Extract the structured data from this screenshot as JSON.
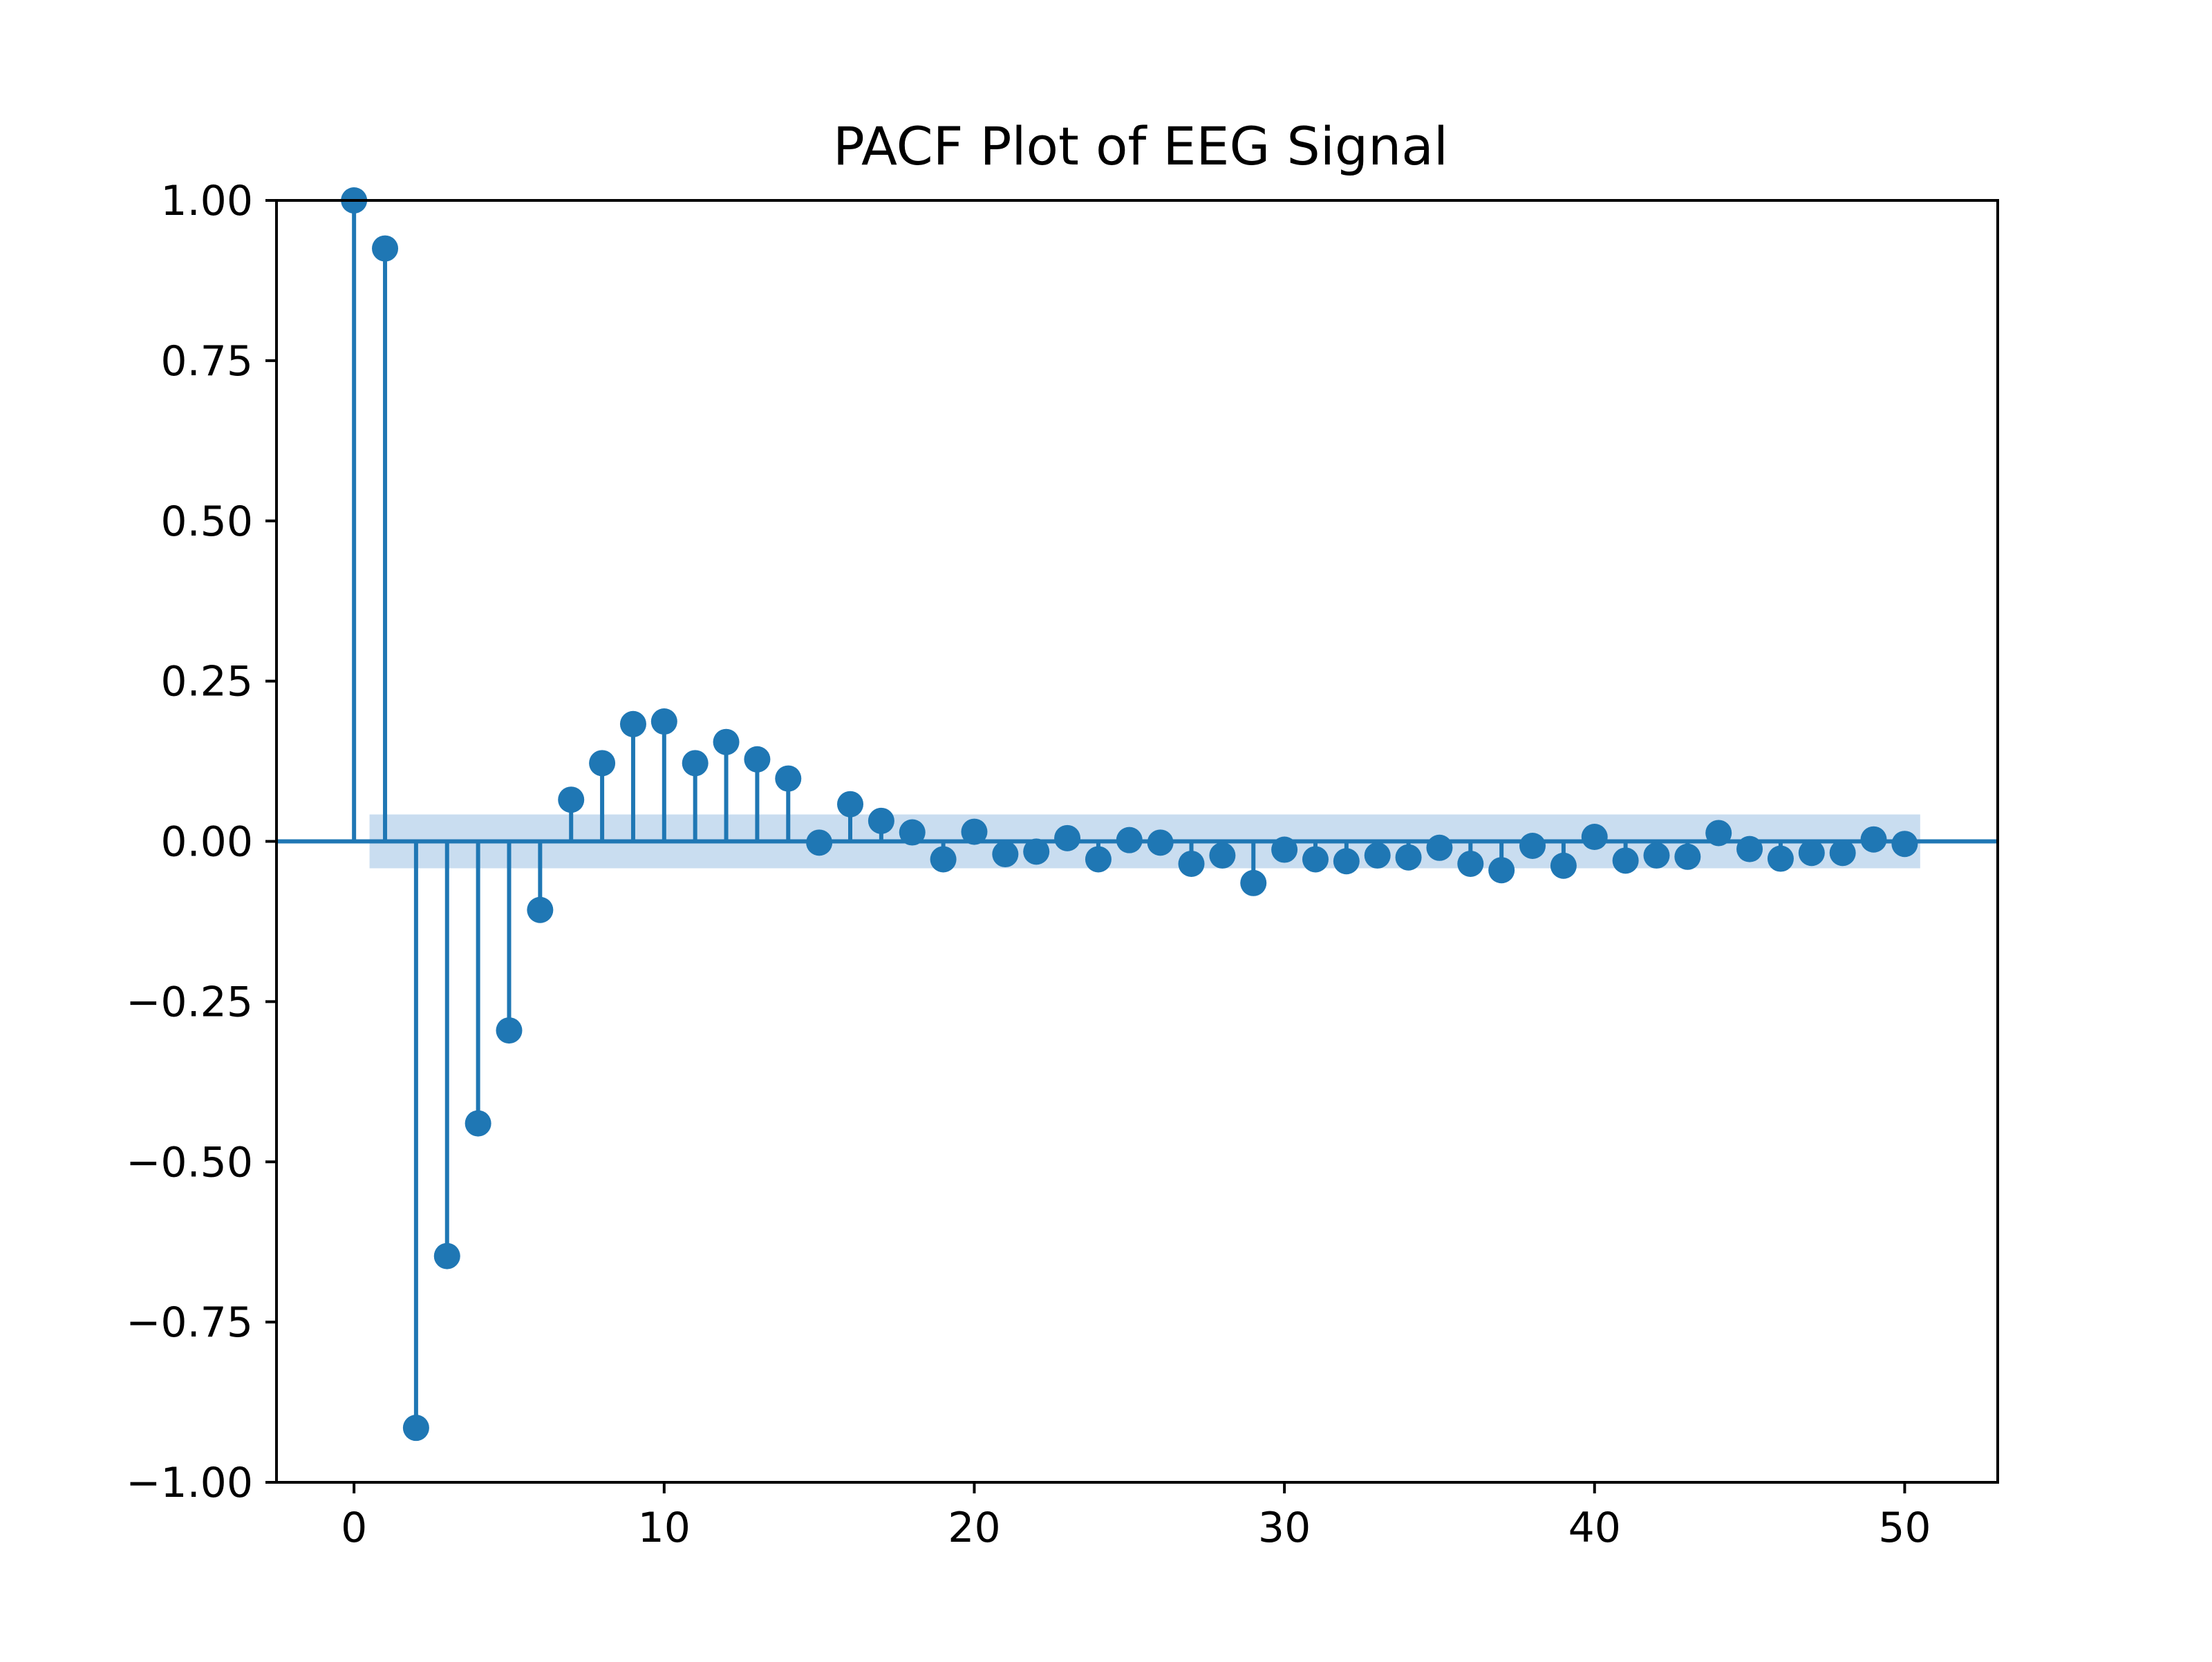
{
  "chart_data": {
    "type": "stem",
    "title": "PACF Plot of EEG Signal",
    "xlabel": "",
    "ylabel": "",
    "xlim": [
      -2.5,
      53
    ],
    "ylim": [
      -1.0,
      1.0
    ],
    "x_ticks": [
      0,
      10,
      20,
      30,
      40,
      50
    ],
    "x_tick_labels": [
      "0",
      "10",
      "20",
      "30",
      "40",
      "50"
    ],
    "y_ticks": [
      1.0,
      0.75,
      0.5,
      0.25,
      0.0,
      -0.25,
      -0.5,
      -0.75,
      -1.0
    ],
    "y_tick_labels": [
      "1.00",
      "0.75",
      "0.50",
      "0.25",
      "0.00",
      "−0.25",
      "−0.50",
      "−0.75",
      "−1.00"
    ],
    "grid": false,
    "confidence_band": {
      "x_range": [
        0.5,
        50.5
      ],
      "y_range": [
        -0.042,
        0.042
      ]
    },
    "colors": {
      "series": "#1f77b4",
      "band": "#c6dbef",
      "axes": "#000000"
    },
    "x": [
      0,
      1,
      2,
      3,
      4,
      5,
      6,
      7,
      8,
      9,
      10,
      11,
      12,
      13,
      14,
      15,
      16,
      17,
      18,
      19,
      20,
      21,
      22,
      23,
      24,
      25,
      26,
      27,
      28,
      29,
      30,
      31,
      32,
      33,
      34,
      35,
      36,
      37,
      38,
      39,
      40,
      41,
      42,
      43,
      44,
      45,
      46,
      47,
      48,
      49,
      50
    ],
    "values": [
      1.0,
      0.925,
      -0.915,
      -0.647,
      -0.44,
      -0.295,
      -0.107,
      0.065,
      0.122,
      0.183,
      0.187,
      0.122,
      0.155,
      0.128,
      0.098,
      -0.002,
      0.058,
      0.032,
      0.014,
      -0.028,
      0.015,
      -0.02,
      -0.016,
      0.005,
      -0.028,
      0.002,
      -0.002,
      -0.035,
      -0.022,
      -0.065,
      -0.013,
      -0.028,
      -0.031,
      -0.022,
      -0.025,
      -0.01,
      -0.035,
      -0.045,
      -0.007,
      -0.038,
      0.007,
      -0.03,
      -0.022,
      -0.024,
      0.013,
      -0.012,
      -0.027,
      -0.018,
      -0.018,
      0.003,
      -0.004
    ]
  }
}
